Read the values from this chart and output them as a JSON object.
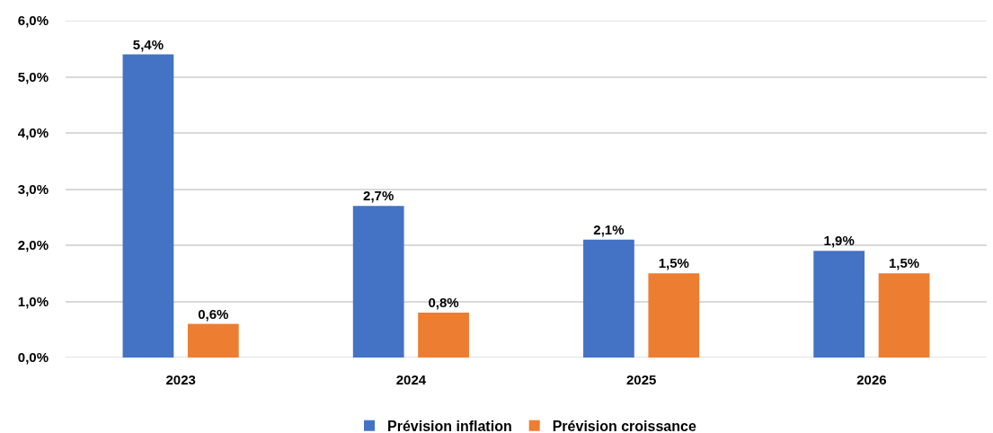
{
  "chart_data": {
    "type": "bar",
    "categories": [
      "2023",
      "2024",
      "2025",
      "2026"
    ],
    "series": [
      {
        "name": "Prévision inflation",
        "color": "#4472c4",
        "values": [
          5.4,
          2.7,
          2.1,
          1.9
        ],
        "value_labels": [
          "5,4%",
          "2,7%",
          "2,1%",
          "1,9%"
        ]
      },
      {
        "name": "Prévision croissance",
        "color": "#ed7d31",
        "values": [
          0.6,
          0.8,
          1.5,
          1.5
        ],
        "value_labels": [
          "0,6%",
          "0,8%",
          "1,5%",
          "1,5%"
        ]
      }
    ],
    "ylim": [
      0,
      6
    ],
    "yticks": [
      {
        "value": 0,
        "label": "0,0%"
      },
      {
        "value": 1,
        "label": "1,0%"
      },
      {
        "value": 2,
        "label": "2,0%"
      },
      {
        "value": 3,
        "label": "3,0%"
      },
      {
        "value": 4,
        "label": "4,0%"
      },
      {
        "value": 5,
        "label": "5,0%"
      },
      {
        "value": 6,
        "label": "6,0%"
      }
    ],
    "grid": "y",
    "legend": "bottom"
  }
}
